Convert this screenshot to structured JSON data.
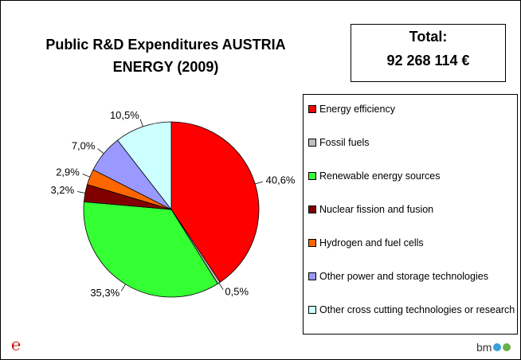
{
  "chart_data": {
    "type": "pie",
    "title": "Public R&D Expenditures AUSTRIA ENERGY (2009)",
    "total_label": "Total:",
    "total_value": "92 268 114 €",
    "categories": [
      "Energy efficiency",
      "Fossil fuels",
      "Renewable energy sources",
      "Nuclear fission and fusion",
      "Hydrogen and fuel cells",
      "Other power and storage technologies",
      "Other cross cutting technologies or research"
    ],
    "values": [
      40.6,
      0.5,
      35.3,
      3.2,
      2.9,
      7.0,
      10.5
    ],
    "value_labels": [
      "40,6%",
      "0,5%",
      "35,3%",
      "3,2%",
      "2,9%",
      "7,0%",
      "10,5%"
    ],
    "colors": [
      "#ff0000",
      "#c0c0c0",
      "#33ff33",
      "#800000",
      "#ff6600",
      "#9999ff",
      "#ccffff"
    ],
    "logo_right": "bm"
  }
}
